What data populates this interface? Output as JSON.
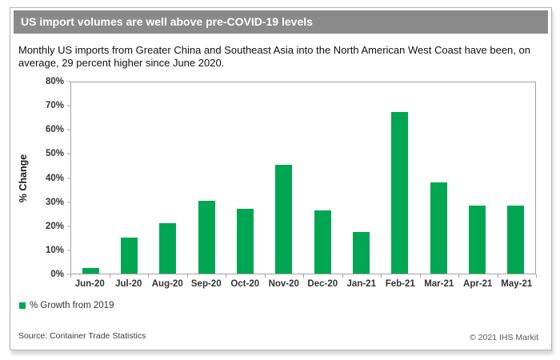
{
  "header": {
    "title": "US import volumes are well above pre-COVID-19 levels"
  },
  "subtitle": {
    "text": "Monthly US imports from Greater China and Southeast Asia into the North American West Coast have been, on average, 29 percent higher since June 2020."
  },
  "chart_data": {
    "type": "bar",
    "title": "US import volumes are well above pre-COVID-19 levels",
    "categories": [
      "Jun-20",
      "Jul-20",
      "Aug-20",
      "Sep-20",
      "Oct-20",
      "Nov-20",
      "Dec-20",
      "Jan-21",
      "Feb-21",
      "Mar-21",
      "Apr-21",
      "May-21"
    ],
    "series": [
      {
        "name": "% Growth from 2019",
        "values": [
          2.5,
          15,
          21,
          30.5,
          27,
          45.5,
          26.5,
          17.5,
          67.5,
          38,
          28.5,
          28.5
        ]
      }
    ],
    "xlabel": "",
    "ylabel": "% Change",
    "ylim": [
      0,
      80
    ],
    "y_tick_step": 10,
    "y_tick_labels": [
      "0%",
      "10%",
      "20%",
      "30%",
      "40%",
      "50%",
      "60%",
      "70%",
      "80%"
    ],
    "grid": false,
    "legend_position": "bottom-left",
    "bar_color": "#00a651"
  },
  "legend": {
    "label": "% Growth from 2019",
    "swatch_color": "#00a651"
  },
  "footer": {
    "source": "Source: Container Trade Statistics",
    "copyright": "© 2021 IHS Markit"
  },
  "colors": {
    "header_bg": "#8a8a8a",
    "header_text": "#ffffff",
    "bar_green": "#00a651",
    "axis_line": "#a3a3a3",
    "tick_text": "#333333"
  }
}
